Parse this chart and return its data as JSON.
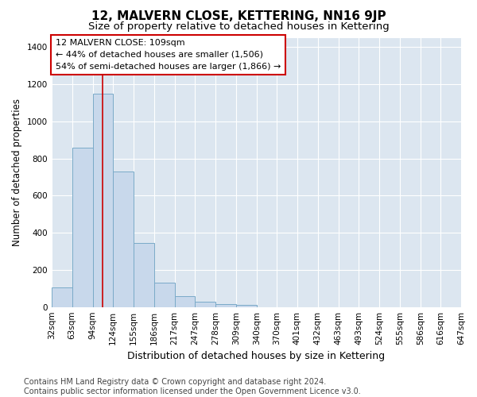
{
  "title": "12, MALVERN CLOSE, KETTERING, NN16 9JP",
  "subtitle": "Size of property relative to detached houses in Kettering",
  "xlabel": "Distribution of detached houses by size in Kettering",
  "ylabel": "Number of detached properties",
  "bar_color": "#c8d8eb",
  "bar_edge_color": "#7aaac8",
  "bin_edges": [
    32,
    63,
    94,
    124,
    155,
    186,
    217,
    247,
    278,
    309,
    340,
    370,
    401,
    432,
    463,
    493,
    524,
    555,
    586,
    616,
    647
  ],
  "bar_heights": [
    105,
    860,
    1148,
    730,
    345,
    130,
    60,
    30,
    15,
    10,
    0,
    0,
    0,
    0,
    0,
    0,
    0,
    0,
    0,
    0
  ],
  "property_size": 109,
  "vline_color": "#cc0000",
  "annotation_text": "12 MALVERN CLOSE: 109sqm\n← 44% of detached houses are smaller (1,506)\n54% of semi-detached houses are larger (1,866) →",
  "annotation_box_color": "#cc0000",
  "ylim": [
    0,
    1450
  ],
  "yticks": [
    0,
    200,
    400,
    600,
    800,
    1000,
    1200,
    1400
  ],
  "background_color": "#dce6f0",
  "plot_bg_color": "#dce6f0",
  "footnote": "Contains HM Land Registry data © Crown copyright and database right 2024.\nContains public sector information licensed under the Open Government Licence v3.0.",
  "title_fontsize": 11,
  "subtitle_fontsize": 9.5,
  "xlabel_fontsize": 9,
  "ylabel_fontsize": 8.5,
  "tick_fontsize": 7.5,
  "annotation_fontsize": 8,
  "footnote_fontsize": 7
}
